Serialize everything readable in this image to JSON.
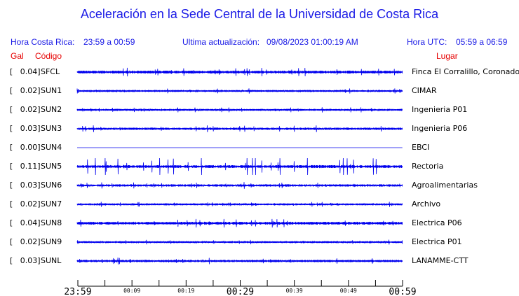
{
  "title": "Aceleración en la Sede Central de la Universidad de Costa Rica",
  "header": {
    "cr_label": "Hora Costa Rica:",
    "cr_range": "23:59 a 00:59",
    "update_label": "Ultima actualización:",
    "update_value": "09/08/2023 01:00:19 AM",
    "utc_label": "Hora UTC:",
    "utc_range": "05:59 a 06:59"
  },
  "columns": {
    "gal": "Gal",
    "code": "Código",
    "place": "Lugar"
  },
  "colors": {
    "trace": "#0000ee",
    "header": "#1a1ae6",
    "column_headers": "#e60000"
  },
  "chart_data": {
    "type": "line",
    "description_unit": "Gal",
    "x_ticks": [
      "23:59",
      "00:09",
      "00:19",
      "00:29",
      "00:39",
      "00:49",
      "00:59"
    ],
    "stations": [
      {
        "gal": "[   0.04]",
        "code": "SFCL",
        "place": "Finca El Corralillo, Coronado",
        "peak": 0.04
      },
      {
        "gal": "[   0.02]",
        "code": "SUN1",
        "place": "CIMAR",
        "peak": 0.02
      },
      {
        "gal": "[   0.02]",
        "code": "SUN2",
        "place": "Ingenieria P01",
        "peak": 0.02
      },
      {
        "gal": "[   0.03]",
        "code": "SUN3",
        "place": "Ingenieria P06",
        "peak": 0.03
      },
      {
        "gal": "[   0.00]",
        "code": "SUN4",
        "place": "EBCI",
        "peak": 0.0
      },
      {
        "gal": "[   0.11]",
        "code": "SUN5",
        "place": "Rectoria",
        "peak": 0.11
      },
      {
        "gal": "[   0.03]",
        "code": "SUN6",
        "place": "Agroalimentarias",
        "peak": 0.03
      },
      {
        "gal": "[   0.02]",
        "code": "SUN7",
        "place": "Archivo",
        "peak": 0.02
      },
      {
        "gal": "[   0.04]",
        "code": "SUN8",
        "place": "Electrica P06",
        "peak": 0.04
      },
      {
        "gal": "[   0.02]",
        "code": "SUN9",
        "place": "Electrica P01",
        "peak": 0.02
      },
      {
        "gal": "[   0.03]",
        "code": "SUNL",
        "place": "LANAMME-CTT",
        "peak": 0.03
      }
    ]
  }
}
